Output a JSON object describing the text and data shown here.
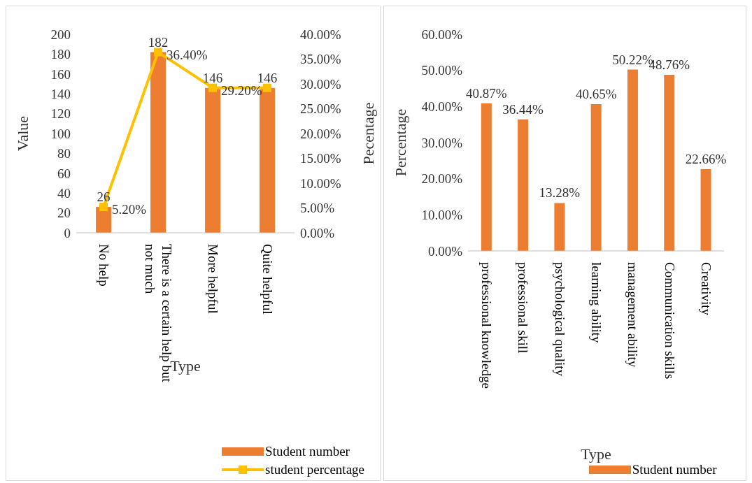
{
  "chart_data": [
    {
      "type": "bar",
      "xlabel": "Type",
      "ylabel": "Value",
      "y2label": "Pecentage",
      "categories": [
        "No help",
        "There is a certain help but not much",
        "More helpful",
        "Quite helpful"
      ],
      "series": [
        {
          "name": "Student number",
          "color": "#ed7d31",
          "values": [
            26,
            182,
            146,
            146
          ],
          "value_labels": [
            "26",
            "182",
            "146",
            "146"
          ]
        },
        {
          "name": "student percentage",
          "type": "line",
          "axis": "y2",
          "color": "#ffc000",
          "values": [
            5.2,
            36.4,
            29.2,
            29.2
          ],
          "value_labels": [
            "5.20%",
            "36.40%",
            "29.20%",
            null
          ]
        }
      ],
      "ylim": [
        0,
        200
      ],
      "yticks": [
        0,
        20,
        40,
        60,
        80,
        100,
        120,
        140,
        160,
        180,
        200
      ],
      "y2lim": [
        0,
        40
      ],
      "y2ticks": [
        {
          "value": 0,
          "label": "0.00%"
        },
        {
          "value": 5,
          "label": "5.00%"
        },
        {
          "value": 10,
          "label": "10.00%"
        },
        {
          "value": 15,
          "label": "15.00%"
        },
        {
          "value": 20,
          "label": "20.00%"
        },
        {
          "value": 25,
          "label": "25.00%"
        },
        {
          "value": 30,
          "label": "30.00%"
        },
        {
          "value": 35,
          "label": "35.00%"
        },
        {
          "value": 40,
          "label": "40.00%"
        }
      ],
      "marker": "square",
      "grid": false,
      "legend": "bottom right"
    },
    {
      "type": "bar",
      "xlabel": "Type",
      "ylabel": "Percentage",
      "categories": [
        "professional knowledge",
        "professional skill",
        "psychological quality",
        "learning ability",
        "management ability",
        "Communication skills",
        "Creativity"
      ],
      "series": [
        {
          "name": "Student number",
          "color": "#ed7d31",
          "values": [
            40.87,
            36.44,
            13.28,
            40.65,
            50.22,
            48.76,
            22.66
          ],
          "value_labels": [
            "40.87%",
            "36.44%",
            "13.28%",
            "40.65%",
            "50.22%",
            "48.76%",
            "22.66%"
          ]
        }
      ],
      "ylim": [
        0,
        60
      ],
      "yticks": [
        {
          "value": 0,
          "label": "0.00%"
        },
        {
          "value": 10,
          "label": "10.00%"
        },
        {
          "value": 20,
          "label": "20.00%"
        },
        {
          "value": 30,
          "label": "30.00%"
        },
        {
          "value": 40,
          "label": "40.00%"
        },
        {
          "value": 50,
          "label": "50.00%"
        },
        {
          "value": 60,
          "label": "60.00%"
        }
      ],
      "grid": false,
      "legend": "bottom right"
    }
  ]
}
